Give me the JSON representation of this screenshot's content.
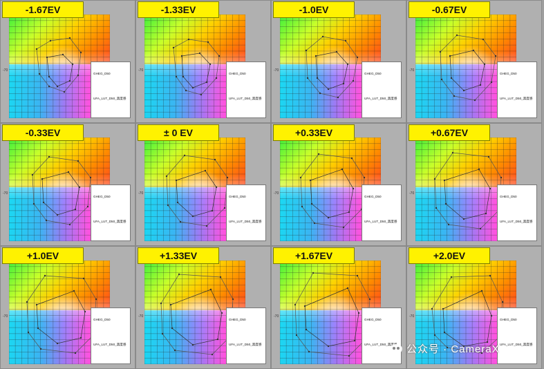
{
  "panels": [
    {
      "label": "-1.67EV"
    },
    {
      "label": "-1.33EV"
    },
    {
      "label": "-1.0EV"
    },
    {
      "label": "-0.67EV"
    },
    {
      "label": "-0.33EV"
    },
    {
      "label": "± 0 EV"
    },
    {
      "label": "+0.33EV"
    },
    {
      "label": "+0.67EV"
    },
    {
      "label": "+1.0EV"
    },
    {
      "label": "+1.33EV"
    },
    {
      "label": "+1.67EV"
    },
    {
      "label": "+2.0EV"
    }
  ],
  "legend": {
    "series_a": "GHEG_D50",
    "series_b": "UFA_LUT_D50_黑度感"
  },
  "axis": {
    "tick_top": "70",
    "tick_bottom": "-70"
  },
  "watermark": {
    "text": "公众号 · CameraX"
  },
  "colors": {
    "badge": "#fff200",
    "background": "#9f9f9f"
  }
}
